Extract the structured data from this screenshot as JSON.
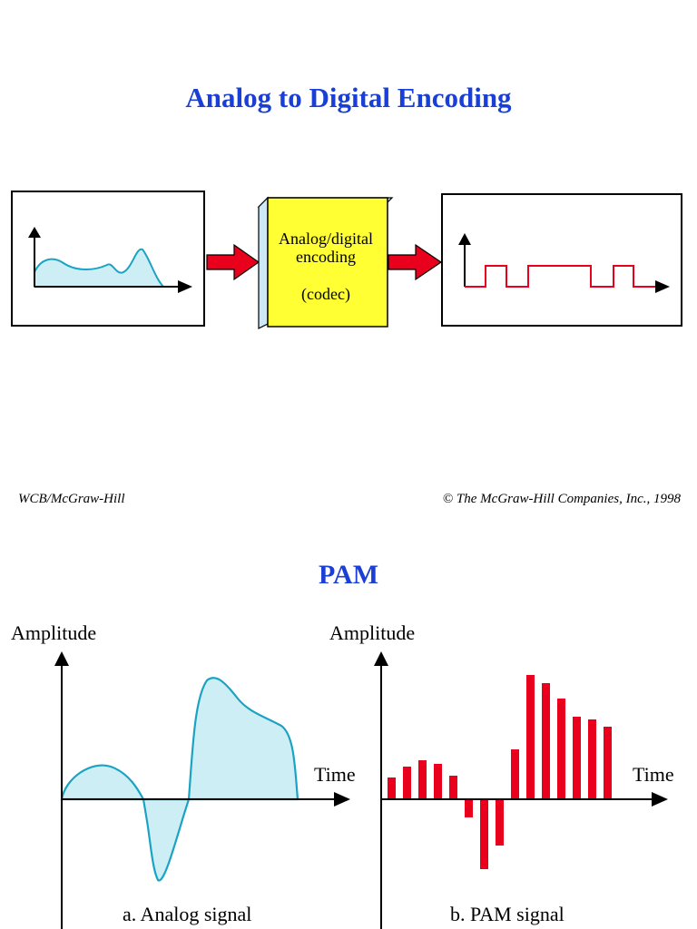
{
  "slide1": {
    "title": "Analog to Digital Encoding",
    "codec_line1": "Analog/digital",
    "codec_line2": "encoding",
    "codec_line3": "(codec)",
    "footer_left": "WCB/McGraw-Hill",
    "footer_right": "© The McGraw-Hill Companies, Inc., 1998"
  },
  "slide2": {
    "title": "PAM",
    "panel_a": {
      "y_label": "Amplitude",
      "x_label": "Time",
      "caption": "a. Analog signal"
    },
    "panel_b": {
      "y_label": "Amplitude",
      "x_label": "Time",
      "caption": "b. PAM signal"
    }
  },
  "colors": {
    "title": "#1a3fd6",
    "signal_stroke": "#1aa3c4",
    "signal_fill": "#cdeef5",
    "digital": "#e8001c",
    "codec_face": "#ffff33",
    "codec_side": "#cde9f7",
    "arrow": "#e8001c"
  }
}
